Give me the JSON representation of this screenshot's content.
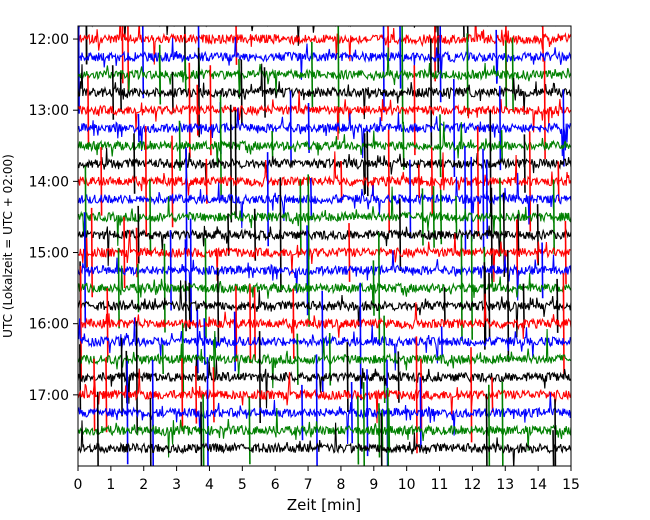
{
  "chart_data": {
    "type": "line",
    "title": "",
    "xlabel": "Zeit  [min]",
    "ylabel": "UTC (Lokalzeit = UTC + 02:00)",
    "xlim": [
      0,
      15
    ],
    "x_ticks": [
      0,
      1,
      2,
      3,
      4,
      5,
      6,
      7,
      8,
      9,
      10,
      11,
      12,
      13,
      14,
      15
    ],
    "y_tick_labels": [
      "12:00",
      "13:00",
      "14:00",
      "15:00",
      "16:00",
      "17:00"
    ],
    "ylim": [
      "11:49",
      "18:00"
    ],
    "trace_interval_minutes": 15,
    "trace_colors": [
      "#000000",
      "#ff0000",
      "#0000ff",
      "#008000"
    ],
    "grid": false,
    "legend": "none"
  }
}
